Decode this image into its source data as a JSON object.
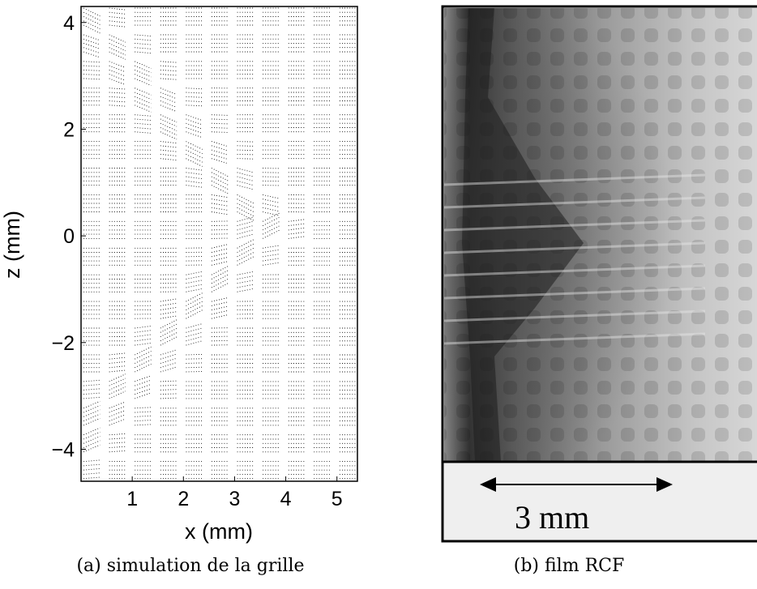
{
  "panel_a": {
    "caption": "(a) simulation de la grille",
    "chart_data": {
      "type": "scatter",
      "xlabel": "x (mm)",
      "ylabel": "z (mm)",
      "xlim": [
        0,
        5.4
      ],
      "ylim": [
        -4.6,
        4.3
      ],
      "xticks": [
        1,
        2,
        3,
        4,
        5
      ],
      "yticks": [
        -4,
        -2,
        0,
        2,
        4
      ],
      "grid": false,
      "description_series": [
        {
          "values": "deformed dotted square grid"
        }
      ]
    }
  },
  "panel_b": {
    "caption": "(b) film RCF",
    "scale_bar_label": "3 mm"
  },
  "colors": {
    "background": "#ffffff",
    "ink": "#000000",
    "film_light": "#cfcfcf",
    "film_dark": "#2a2a2a"
  }
}
